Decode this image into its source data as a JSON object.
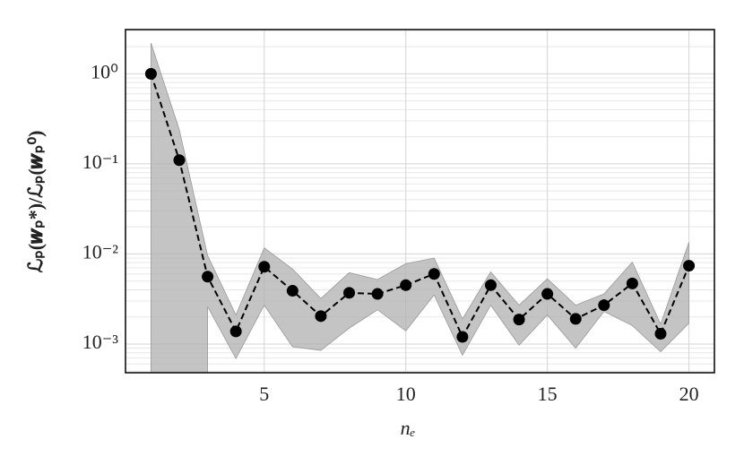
{
  "chart_data": {
    "type": "line",
    "x": [
      1,
      2,
      3,
      4,
      5,
      6,
      7,
      8,
      9,
      10,
      11,
      12,
      13,
      14,
      15,
      16,
      17,
      18,
      19,
      20
    ],
    "values": [
      1.0,
      0.11,
      0.0056,
      0.00138,
      0.0072,
      0.0039,
      0.00204,
      0.0037,
      0.0036,
      0.0045,
      0.006,
      0.0012,
      0.0045,
      0.00187,
      0.0036,
      0.0019,
      0.0027,
      0.0047,
      0.0013,
      0.0074
    ],
    "band_upper": [
      2.2,
      0.24,
      0.0096,
      0.0021,
      0.0117,
      0.0068,
      0.0032,
      0.0062,
      0.0052,
      0.0078,
      0.009,
      0.0019,
      0.0063,
      0.0027,
      0.0053,
      0.0027,
      0.0036,
      0.0081,
      0.00166,
      0.0135
    ],
    "band_lower": [
      null,
      null,
      0.0026,
      0.00069,
      0.0027,
      0.00093,
      0.00085,
      0.0015,
      0.0024,
      0.0014,
      0.0035,
      0.00075,
      0.0027,
      0.00097,
      0.0021,
      0.0009,
      0.0023,
      0.0016,
      0.00082,
      0.0017
    ],
    "color": "#000000",
    "band_color": "#b0b0b0",
    "xlabel": "nₑ",
    "ylabel": "ℒₚ(𝒘ₚ*)/ℒₚ(𝒘ₚ⁰)",
    "xlim": [
      0.1,
      20.9
    ],
    "xticks": [
      5,
      10,
      15,
      20
    ],
    "ylim": [
      0.00048,
      3.1
    ],
    "log_y": true,
    "grid": true,
    "minor_grid": true,
    "yticks": [
      {
        "value": 0.001,
        "label": "10⁻³"
      },
      {
        "value": 0.01,
        "label": "10⁻²"
      },
      {
        "value": 0.1,
        "label": "10⁻¹"
      },
      {
        "value": 1,
        "label": "10⁰"
      }
    ]
  }
}
